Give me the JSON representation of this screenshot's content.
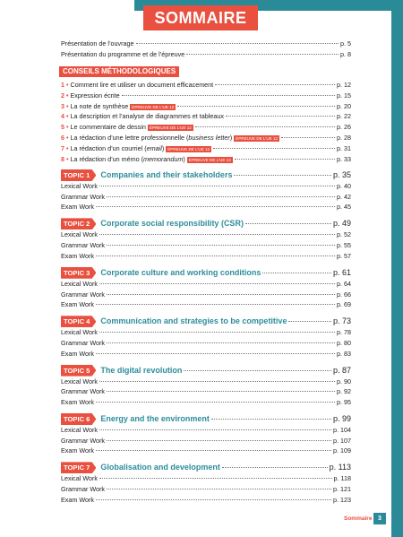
{
  "header": {
    "title": "SOMMAIRE"
  },
  "intro": [
    {
      "label": "Présentation de l’ouvrage",
      "page": "p. 5"
    },
    {
      "label": "Présentation du programme et de l’épreuve",
      "page": "p. 8"
    }
  ],
  "methodology": {
    "title": "CONSEILS MÉTHODOLOGIQUES",
    "items": [
      {
        "number": "1 •",
        "label": [
          "Comment lire et utiliser un document efficacement"
        ],
        "page": "p. 12"
      },
      {
        "number": "2 •",
        "label": [
          "Expression écrite"
        ],
        "page": "p. 15"
      },
      {
        "number": "3 •",
        "label": [
          "La note de synthèse"
        ],
        "badge": "ÉPREUVE DE L’UE 12",
        "page": "p. 20"
      },
      {
        "number": "4 •",
        "label": [
          "La description et l’analyse de diagrammes et tableaux"
        ],
        "page": "p. 22"
      },
      {
        "number": "5 •",
        "label": [
          "Le commentaire de dessin"
        ],
        "badge": "ÉPREUVE DE L’UE 12",
        "page": "p. 26"
      },
      {
        "number": "6 •",
        "label": [
          "La rédaction d’une lettre professionnelle (",
          "business letter",
          ")"
        ],
        "badge": "ÉPREUVE DE L’UE 12",
        "page": "p. 28"
      },
      {
        "number": "7 •",
        "label": [
          "La rédaction d’un courriel (",
          "email",
          ")"
        ],
        "badge": "ÉPREUVE DE L’UE 12",
        "page": "p. 31"
      },
      {
        "number": "8 •",
        "label": [
          "La rédaction d’un mémo (",
          "memorandum",
          ")"
        ],
        "badge": "ÉPREUVE DE L’UE 12",
        "page": "p. 33"
      }
    ]
  },
  "topics": [
    {
      "tag": "TOPIC 1",
      "title": "Companies and their stakeholders",
      "page": "p. 35",
      "sections": [
        {
          "label": "Lexical Work",
          "page": "p. 40"
        },
        {
          "label": "Grammar Work",
          "page": "p. 42"
        },
        {
          "label": "Exam Work",
          "page": "p. 45"
        }
      ]
    },
    {
      "tag": "TOPIC 2",
      "title": "Corporate social responsibility (CSR)",
      "page": "p. 49",
      "sections": [
        {
          "label": "Lexical Work",
          "page": "p. 52"
        },
        {
          "label": "Grammar Work",
          "page": "p. 55"
        },
        {
          "label": "Exam Work",
          "page": "p. 57"
        }
      ]
    },
    {
      "tag": "TOPIC 3",
      "title": "Corporate culture and working conditions",
      "page": "p. 61",
      "sections": [
        {
          "label": "Lexical Work",
          "page": "p. 64"
        },
        {
          "label": "Grammar Work",
          "page": "p. 66"
        },
        {
          "label": "Exam Work",
          "page": "p. 69"
        }
      ]
    },
    {
      "tag": "TOPIC 4",
      "title": "Communication and strategies to be competitive",
      "page": "p. 73",
      "sections": [
        {
          "label": "Lexical Work",
          "page": "p. 78"
        },
        {
          "label": "Grammar Work",
          "page": "p. 80"
        },
        {
          "label": "Exam Work",
          "page": "p. 83"
        }
      ]
    },
    {
      "tag": "TOPIC 5",
      "title": "The digital revolution",
      "page": "p. 87",
      "sections": [
        {
          "label": "Lexical Work",
          "page": "p. 90"
        },
        {
          "label": "Grammar Work",
          "page": "p. 92"
        },
        {
          "label": "Exam Work",
          "page": "p. 95"
        }
      ]
    },
    {
      "tag": "TOPIC 6",
      "title": "Energy and the environment",
      "page": "p. 99",
      "sections": [
        {
          "label": "Lexical Work",
          "page": "p. 104"
        },
        {
          "label": "Grammar Work",
          "page": "p. 107"
        },
        {
          "label": "Exam Work",
          "page": "p. 109"
        }
      ]
    },
    {
      "tag": "TOPIC 7",
      "title": "Globalisation and development",
      "page": "p. 113",
      "sections": [
        {
          "label": "Lexical Work",
          "page": "p. 118"
        },
        {
          "label": "Grammar Work",
          "page": "p. 121"
        },
        {
          "label": "Exam Work",
          "page": "p. 123"
        }
      ]
    }
  ],
  "footer": {
    "label": "Sommaire",
    "page": "3"
  }
}
